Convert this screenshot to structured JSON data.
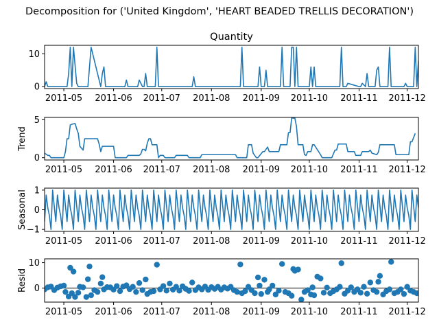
{
  "figure": {
    "title": "Decomposition for ('United Kingdom', 'HEART BEADED TRELLIS DECORATION')"
  },
  "x_axis": {
    "start": "2011-04-19",
    "end": "2011-12-08",
    "ticks": [
      {
        "date": "2011-05-01",
        "label": "2011-05"
      },
      {
        "date": "2011-06-01",
        "label": "2011-06"
      },
      {
        "date": "2011-07-01",
        "label": "2011-07"
      },
      {
        "date": "2011-08-01",
        "label": "2011-08"
      },
      {
        "date": "2011-09-01",
        "label": "2011-09"
      },
      {
        "date": "2011-10-01",
        "label": "2011-10"
      },
      {
        "date": "2011-11-01",
        "label": "2011-11"
      },
      {
        "date": "2011-12-01",
        "label": "2011-12"
      }
    ]
  },
  "colors": {
    "series": "#1f77b4",
    "axis": "#000000",
    "zero_line": "#000000"
  },
  "chart_data": [
    {
      "type": "line",
      "title": "Quantity",
      "ylabel": "",
      "ylim": [
        -0.6,
        12.6
      ],
      "yticks": [
        0,
        10
      ],
      "x": [
        "2011-04-19",
        "2011-04-20",
        "2011-04-21",
        "2011-04-22",
        "2011-04-28",
        "2011-05-03",
        "2011-05-04",
        "2011-05-05",
        "2011-05-06",
        "2011-05-07",
        "2011-05-09",
        "2011-05-10",
        "2011-05-12",
        "2011-05-16",
        "2011-05-17",
        "2011-05-18",
        "2011-05-24",
        "2011-05-25",
        "2011-05-26",
        "2011-05-27",
        "2011-05-30",
        "2011-06-01",
        "2011-06-08",
        "2011-06-09",
        "2011-06-10",
        "2011-06-15",
        "2011-06-16",
        "2011-06-17",
        "2011-06-19",
        "2011-06-20",
        "2011-06-21",
        "2011-06-22",
        "2011-06-27",
        "2011-06-28",
        "2011-06-29",
        "2011-07-20",
        "2011-07-21",
        "2011-07-22",
        "2011-08-19",
        "2011-08-20",
        "2011-08-21",
        "2011-08-30",
        "2011-08-31",
        "2011-09-01",
        "2011-09-03",
        "2011-09-04",
        "2011-09-05",
        "2011-09-13",
        "2011-09-14",
        "2011-09-15",
        "2011-09-19",
        "2011-09-20",
        "2011-09-21",
        "2011-09-22",
        "2011-09-23",
        "2011-09-24",
        "2011-09-25",
        "2011-10-01",
        "2011-10-02",
        "2011-10-03",
        "2011-10-04",
        "2011-10-05",
        "2011-10-06",
        "2011-10-20",
        "2011-10-21",
        "2011-10-22",
        "2011-10-24",
        "2011-10-25",
        "2011-11-01",
        "2011-11-02",
        "2011-11-03",
        "2011-11-05",
        "2011-11-06",
        "2011-11-07",
        "2011-11-08",
        "2011-11-09",
        "2011-11-11",
        "2011-11-12",
        "2011-11-13",
        "2011-11-14",
        "2011-11-19",
        "2011-11-20",
        "2011-11-21",
        "2011-11-29",
        "2011-11-30",
        "2011-12-01",
        "2011-12-03",
        "2011-12-04",
        "2011-12-05",
        "2011-12-06",
        "2011-12-07",
        "2011-12-08"
      ],
      "values": [
        0,
        1.5,
        0,
        0,
        0,
        0,
        4,
        12,
        0,
        12,
        1,
        0,
        0,
        0,
        6,
        12,
        0,
        4,
        6,
        0,
        0,
        0,
        0,
        2,
        0,
        0,
        0,
        2,
        0,
        0,
        4,
        0,
        0,
        12,
        0,
        0,
        3,
        0,
        0,
        12,
        0,
        0,
        6,
        0,
        0,
        5,
        0,
        0,
        12,
        0,
        0,
        12,
        12,
        0,
        12,
        0,
        0,
        0,
        6,
        0,
        6,
        0,
        0,
        0,
        12,
        0,
        0,
        1,
        0,
        0,
        1,
        0,
        4,
        0,
        0,
        0,
        0,
        5,
        6,
        0,
        0,
        12,
        0,
        0,
        1,
        0,
        0,
        0,
        0,
        12,
        0,
        8
      ]
    },
    {
      "type": "line",
      "title": "",
      "ylabel": "Trend",
      "ylim": [
        -0.3,
        5.3
      ],
      "yticks": [
        0,
        5
      ],
      "x": [
        "2011-04-19",
        "2011-04-21",
        "2011-04-22",
        "2011-04-23",
        "2011-05-01",
        "2011-05-02",
        "2011-05-03",
        "2011-05-04",
        "2011-05-05",
        "2011-05-06",
        "2011-05-08",
        "2011-05-09",
        "2011-05-10",
        "2011-05-11",
        "2011-05-13",
        "2011-05-14",
        "2011-05-22",
        "2011-05-23",
        "2011-05-24",
        "2011-05-25",
        "2011-06-01",
        "2011-06-02",
        "2011-06-09",
        "2011-06-10",
        "2011-06-17",
        "2011-06-18",
        "2011-06-19",
        "2011-06-20",
        "2011-06-21",
        "2011-06-22",
        "2011-06-23",
        "2011-06-24",
        "2011-06-25",
        "2011-06-28",
        "2011-06-29",
        "2011-06-30",
        "2011-07-01",
        "2011-07-02",
        "2011-07-03",
        "2011-07-09",
        "2011-07-10",
        "2011-07-17",
        "2011-07-18",
        "2011-07-25",
        "2011-07-26",
        "2011-08-16",
        "2011-08-17",
        "2011-08-23",
        "2011-08-24",
        "2011-08-26",
        "2011-08-27",
        "2011-08-29",
        "2011-08-30",
        "2011-09-02",
        "2011-09-03",
        "2011-09-05",
        "2011-09-06",
        "2011-09-12",
        "2011-09-13",
        "2011-09-17",
        "2011-09-18",
        "2011-09-19",
        "2011-09-20",
        "2011-09-21",
        "2011-09-22",
        "2011-09-23",
        "2011-09-24",
        "2011-09-27",
        "2011-09-28",
        "2011-09-29",
        "2011-09-30",
        "2011-10-02",
        "2011-10-03",
        "2011-10-04",
        "2011-10-08",
        "2011-10-09",
        "2011-10-10",
        "2011-10-15",
        "2011-10-16",
        "2011-10-17",
        "2011-10-18",
        "2011-10-19",
        "2011-10-24",
        "2011-10-25",
        "2011-10-29",
        "2011-10-30",
        "2011-11-02",
        "2011-11-03",
        "2011-11-07",
        "2011-11-08",
        "2011-11-09",
        "2011-11-12",
        "2011-11-13",
        "2011-11-14",
        "2011-11-15",
        "2011-11-23",
        "2011-11-24",
        "2011-11-25",
        "2011-12-02",
        "2011-12-03",
        "2011-12-04",
        "2011-12-06"
      ],
      "values": [
        0.6,
        0.3,
        0.3,
        0,
        0,
        0.8,
        2.5,
        2.5,
        4.3,
        4.4,
        4.5,
        3.8,
        3.2,
        1.5,
        1.0,
        2.5,
        2.5,
        1.8,
        0.8,
        1.5,
        1.5,
        0,
        0,
        0.3,
        0.3,
        0.5,
        1.1,
        1.1,
        0.9,
        1.9,
        2.5,
        2.5,
        1.7,
        1.7,
        0,
        0.3,
        0.3,
        0.3,
        0,
        0,
        0.3,
        0.3,
        0,
        0,
        0.4,
        0.4,
        0,
        0,
        1.7,
        1.7,
        0.6,
        0,
        0,
        0.8,
        0.8,
        1.4,
        0.8,
        0.8,
        1.7,
        1.7,
        3.3,
        3.3,
        5.2,
        5.2,
        5.2,
        4.1,
        1.7,
        1.7,
        0.4,
        0.3,
        0.8,
        0.8,
        1.7,
        1.7,
        0.4,
        0,
        0,
        0,
        0.5,
        1.0,
        1.0,
        1.8,
        1.8,
        0.8,
        0.8,
        0.3,
        0.3,
        0.8,
        0.8,
        1.0,
        0.6,
        0.4,
        0.7,
        1.7,
        1.7,
        1.7,
        0.4,
        0.4,
        0.4,
        2.1,
        2.1,
        3.2
      ]
    },
    {
      "type": "line",
      "title": "",
      "ylabel": "Seasonal",
      "ylim": [
        -1.1,
        1.1
      ],
      "yticks": [
        -1,
        0,
        1
      ],
      "period_days": 7,
      "cycle_values": [
        -0.6,
        0.75,
        0.1,
        -0.3,
        -1.0,
        1.0,
        0.2
      ],
      "x_start": "2011-04-19",
      "x_end": "2011-12-08"
    },
    {
      "type": "scatter",
      "title": "",
      "ylabel": "Resid",
      "ylim": [
        -5.5,
        11.5
      ],
      "yticks": [
        0,
        10
      ],
      "zero_line": true,
      "x": [
        "2011-04-19",
        "2011-04-21",
        "2011-04-23",
        "2011-04-25",
        "2011-04-27",
        "2011-04-29",
        "2011-05-01",
        "2011-05-02",
        "2011-05-04",
        "2011-05-05",
        "2011-05-06",
        "2011-05-07",
        "2011-05-08",
        "2011-05-10",
        "2011-05-11",
        "2011-05-13",
        "2011-05-15",
        "2011-05-16",
        "2011-05-17",
        "2011-05-18",
        "2011-05-20",
        "2011-05-22",
        "2011-05-24",
        "2011-05-25",
        "2011-05-26",
        "2011-05-28",
        "2011-05-30",
        "2011-06-01",
        "2011-06-03",
        "2011-06-05",
        "2011-06-07",
        "2011-06-09",
        "2011-06-11",
        "2011-06-13",
        "2011-06-15",
        "2011-06-17",
        "2011-06-19",
        "2011-06-21",
        "2011-06-22",
        "2011-06-24",
        "2011-06-26",
        "2011-06-28",
        "2011-06-30",
        "2011-07-02",
        "2011-07-04",
        "2011-07-06",
        "2011-07-08",
        "2011-07-10",
        "2011-07-12",
        "2011-07-14",
        "2011-07-16",
        "2011-07-18",
        "2011-07-20",
        "2011-07-22",
        "2011-07-24",
        "2011-07-26",
        "2011-07-28",
        "2011-07-30",
        "2011-08-01",
        "2011-08-03",
        "2011-08-05",
        "2011-08-07",
        "2011-08-09",
        "2011-08-11",
        "2011-08-13",
        "2011-08-15",
        "2011-08-17",
        "2011-08-19",
        "2011-08-20",
        "2011-08-22",
        "2011-08-24",
        "2011-08-26",
        "2011-08-28",
        "2011-08-30",
        "2011-08-31",
        "2011-09-01",
        "2011-09-03",
        "2011-09-05",
        "2011-09-06",
        "2011-09-08",
        "2011-09-10",
        "2011-09-12",
        "2011-09-14",
        "2011-09-16",
        "2011-09-18",
        "2011-09-20",
        "2011-09-21",
        "2011-09-22",
        "2011-09-24",
        "2011-09-26",
        "2011-09-28",
        "2011-09-30",
        "2011-10-02",
        "2011-10-03",
        "2011-10-04",
        "2011-10-06",
        "2011-10-08",
        "2011-10-10",
        "2011-10-12",
        "2011-10-14",
        "2011-10-16",
        "2011-10-18",
        "2011-10-20",
        "2011-10-21",
        "2011-10-23",
        "2011-10-25",
        "2011-10-27",
        "2011-10-29",
        "2011-10-31",
        "2011-11-02",
        "2011-11-04",
        "2011-11-06",
        "2011-11-08",
        "2011-11-10",
        "2011-11-12",
        "2011-11-13",
        "2011-11-14",
        "2011-11-16",
        "2011-11-18",
        "2011-11-20",
        "2011-11-21",
        "2011-11-23",
        "2011-11-25",
        "2011-11-27",
        "2011-11-29",
        "2011-12-01",
        "2011-12-03",
        "2011-12-05",
        "2011-12-07"
      ],
      "values": [
        -0.5,
        0.3,
        0.6,
        -0.8,
        0.2,
        0.7,
        1.0,
        -1.5,
        -3.3,
        8.0,
        -2.0,
        6.5,
        -3.5,
        -1.8,
        0.5,
        0.3,
        -3.5,
        3.5,
        8.5,
        -2.8,
        -0.8,
        -1.5,
        1.8,
        4.3,
        -0.5,
        0.4,
        0.3,
        -0.6,
        0.8,
        -1.2,
        0.6,
        1.1,
        -0.4,
        0.5,
        -1.5,
        2.0,
        -0.8,
        3.4,
        -2.3,
        -1.5,
        -1.2,
        9.2,
        -0.5,
        0.8,
        -1.0,
        1.8,
        -0.6,
        0.5,
        -1.0,
        0.7,
        -0.3,
        -1.1,
        2.2,
        -0.8,
        0.3,
        -0.5,
        0.6,
        -0.7,
        0.4,
        -0.3,
        0.5,
        -0.6,
        0.3,
        -0.2,
        0.5,
        -0.8,
        -1.5,
        9.3,
        -2.0,
        -1.2,
        0.5,
        -0.8,
        -2.0,
        4.2,
        1.0,
        -2.3,
        3.3,
        -1.5,
        -0.5,
        1.0,
        -2.5,
        -1.0,
        9.5,
        -1.5,
        -2.0,
        -3.0,
        7.5,
        6.8,
        7.3,
        -4.5,
        -1.5,
        -0.8,
        -2.5,
        0.3,
        -2.8,
        4.5,
        3.8,
        -1.8,
        0.2,
        -2.0,
        -1.2,
        -0.5,
        0.5,
        9.8,
        -2.2,
        -1.0,
        0.3,
        -1.5,
        -0.5,
        -1.8,
        0.5,
        -2.2,
        2.2,
        -0.8,
        -1.5,
        2.5,
        4.8,
        -2.5,
        -1.2,
        -0.5,
        10.3,
        -2.0,
        -1.5,
        -0.5,
        -2.3,
        0.5,
        -1.0,
        -1.5,
        -2.0
      ]
    }
  ]
}
